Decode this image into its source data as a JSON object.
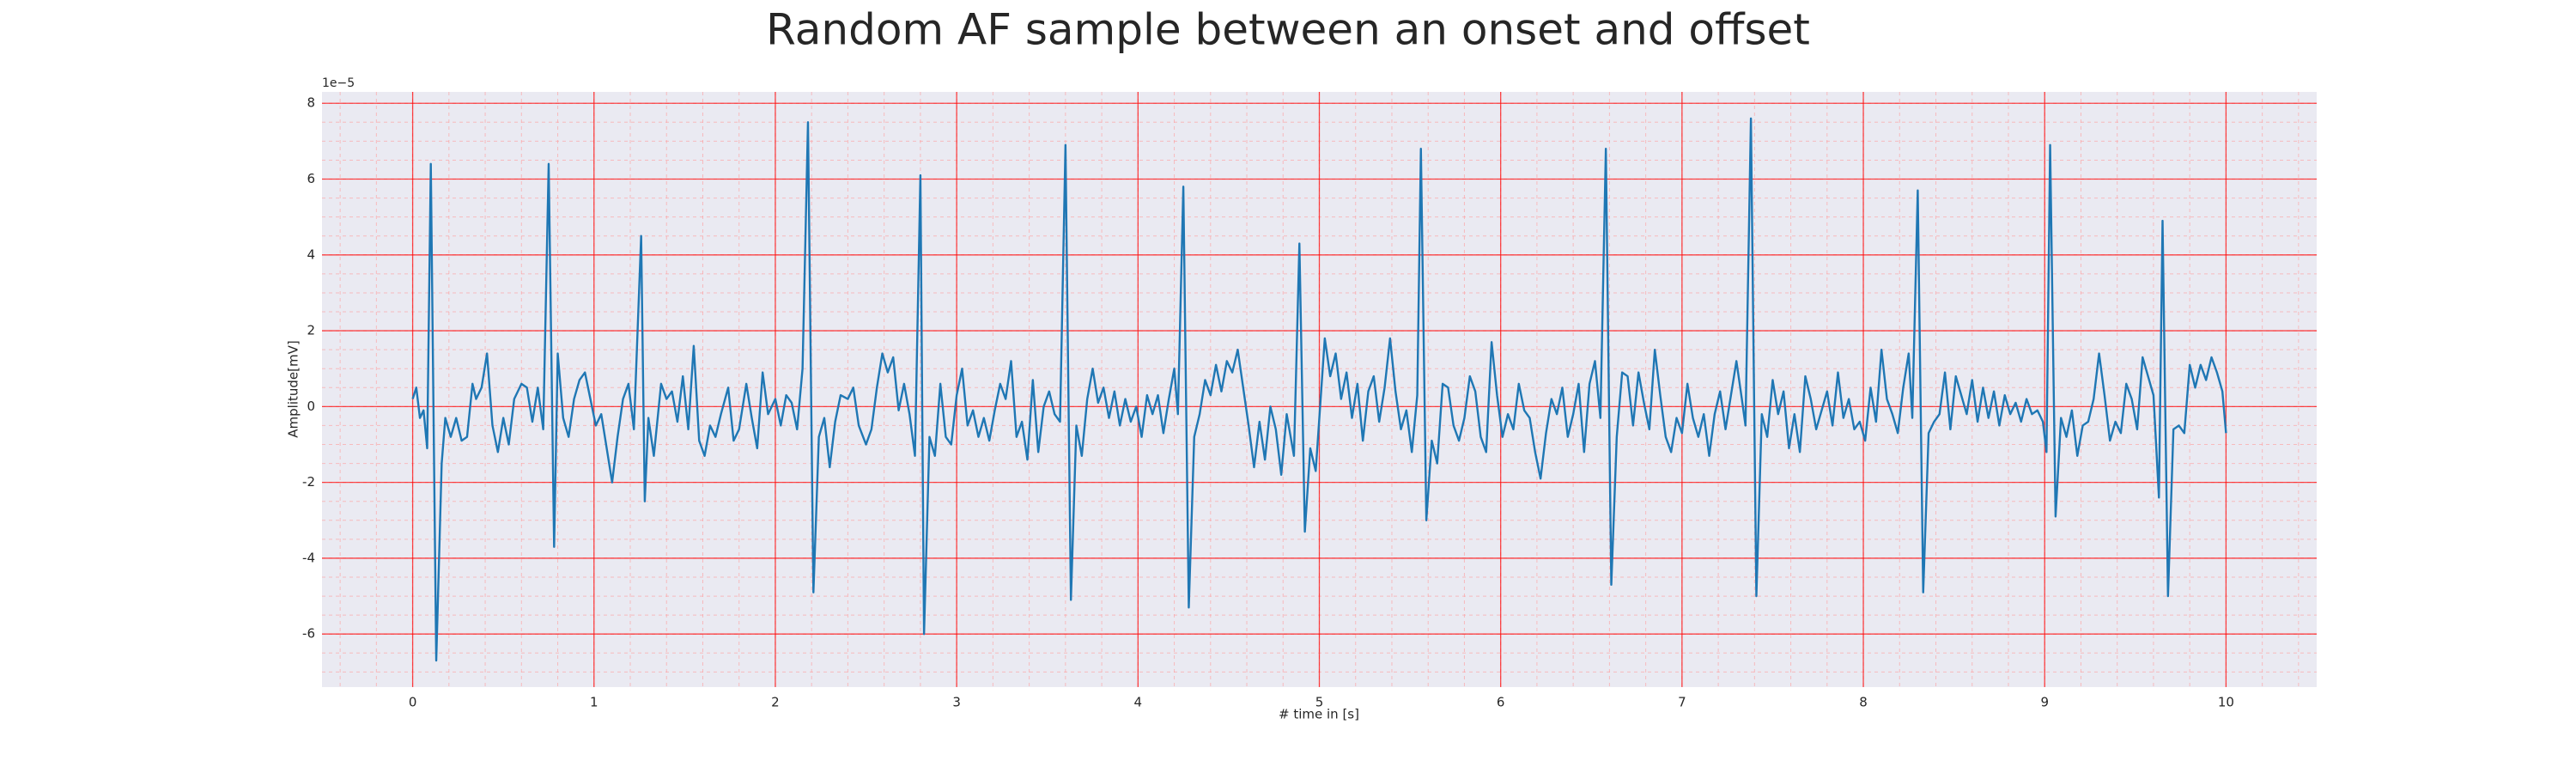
{
  "chart_data": {
    "type": "line",
    "title": "Random AF sample between an onset and offset",
    "xlabel": "# time in [s]",
    "ylabel": "Amplitude[mV]",
    "y_offset_label": "1e−5",
    "xlim": [
      -0.5,
      10.5
    ],
    "ylim": [
      -7.4,
      8.3
    ],
    "xticks": [
      0,
      1,
      2,
      3,
      4,
      5,
      6,
      7,
      8,
      9,
      10
    ],
    "yticks": [
      -6,
      -4,
      -2,
      0,
      2,
      4,
      6,
      8
    ],
    "grid": true,
    "grid_color": "#ff0000",
    "minor_grid": {
      "x": 0.2,
      "y": 0.5,
      "color": "#ff9999"
    },
    "background": "#eaeaf2",
    "x": [
      0,
      0.02,
      0.04,
      0.06,
      0.08,
      0.1,
      0.13,
      0.16,
      0.18,
      0.21,
      0.24,
      0.27,
      0.3,
      0.33,
      0.35,
      0.38,
      0.41,
      0.44,
      0.47,
      0.5,
      0.53,
      0.56,
      0.6,
      0.63,
      0.66,
      0.69,
      0.72,
      0.75,
      0.78,
      0.8,
      0.83,
      0.86,
      0.89,
      0.92,
      0.95,
      0.98,
      1.01,
      1.04,
      1.07,
      1.1,
      1.13,
      1.16,
      1.19,
      1.22,
      1.26,
      1.28,
      1.3,
      1.33,
      1.37,
      1.4,
      1.43,
      1.46,
      1.49,
      1.52,
      1.55,
      1.58,
      1.61,
      1.64,
      1.67,
      1.7,
      1.74,
      1.77,
      1.8,
      1.84,
      1.87,
      1.9,
      1.93,
      1.96,
      2,
      2.03,
      2.06,
      2.09,
      2.12,
      2.15,
      2.18,
      2.21,
      2.24,
      2.27,
      2.3,
      2.33,
      2.36,
      2.4,
      2.43,
      2.46,
      2.5,
      2.53,
      2.56,
      2.59,
      2.62,
      2.65,
      2.68,
      2.71,
      2.74,
      2.77,
      2.8,
      2.82,
      2.85,
      2.88,
      2.91,
      2.94,
      2.97,
      3,
      3.03,
      3.06,
      3.09,
      3.12,
      3.15,
      3.18,
      3.21,
      3.24,
      3.27,
      3.3,
      3.33,
      3.36,
      3.39,
      3.42,
      3.45,
      3.48,
      3.51,
      3.54,
      3.57,
      3.6,
      3.63,
      3.66,
      3.69,
      3.72,
      3.75,
      3.78,
      3.81,
      3.84,
      3.87,
      3.9,
      3.93,
      3.96,
      3.99,
      4.02,
      4.05,
      4.08,
      4.11,
      4.14,
      4.17,
      4.2,
      4.22,
      4.25,
      4.28,
      4.31,
      4.34,
      4.37,
      4.4,
      4.43,
      4.46,
      4.49,
      4.52,
      4.55,
      4.58,
      4.61,
      4.64,
      4.67,
      4.7,
      4.73,
      4.76,
      4.79,
      4.82,
      4.86,
      4.89,
      4.92,
      4.95,
      4.98,
      5,
      5.03,
      5.06,
      5.09,
      5.12,
      5.15,
      5.18,
      5.21,
      5.24,
      5.27,
      5.3,
      5.33,
      5.36,
      5.39,
      5.42,
      5.45,
      5.48,
      5.51,
      5.54,
      5.56,
      5.59,
      5.62,
      5.65,
      5.68,
      5.71,
      5.74,
      5.77,
      5.8,
      5.83,
      5.86,
      5.89,
      5.92,
      5.95,
      5.98,
      6.01,
      6.04,
      6.07,
      6.1,
      6.13,
      6.16,
      6.19,
      6.22,
      6.25,
      6.28,
      6.31,
      6.34,
      6.37,
      6.4,
      6.43,
      6.46,
      6.49,
      6.52,
      6.55,
      6.58,
      6.61,
      6.64,
      6.67,
      6.7,
      6.73,
      6.76,
      6.79,
      6.82,
      6.85,
      6.88,
      6.91,
      6.94,
      6.97,
      7,
      7.03,
      7.06,
      7.09,
      7.12,
      7.15,
      7.18,
      7.21,
      7.24,
      7.27,
      7.3,
      7.33,
      7.35,
      7.38,
      7.41,
      7.44,
      7.47,
      7.5,
      7.53,
      7.56,
      7.59,
      7.62,
      7.65,
      7.68,
      7.71,
      7.74,
      7.77,
      7.8,
      7.83,
      7.86,
      7.89,
      7.92,
      7.95,
      7.98,
      8.01,
      8.04,
      8.07,
      8.1,
      8.13,
      8.16,
      8.19,
      8.22,
      8.25,
      8.27,
      8.3,
      8.33,
      8.36,
      8.39,
      8.42,
      8.45,
      8.48,
      8.51,
      8.54,
      8.57,
      8.6,
      8.63,
      8.66,
      8.69,
      8.72,
      8.75,
      8.78,
      8.81,
      8.84,
      8.87,
      8.9,
      8.93,
      8.96,
      8.99,
      9.01,
      9.03,
      9.06,
      9.09,
      9.12,
      9.15,
      9.18,
      9.21,
      9.24,
      9.27,
      9.3,
      9.33,
      9.36,
      9.39,
      9.42,
      9.45,
      9.48,
      9.51,
      9.54,
      9.57,
      9.6,
      9.63,
      9.65,
      9.68,
      9.71,
      9.74,
      9.77,
      9.8,
      9.83,
      9.86,
      9.89,
      9.92,
      9.95,
      9.98,
      10
    ],
    "series": [
      {
        "color": "#1f77b4",
        "values": [
          0.2,
          0.5,
          -0.3,
          -0.1,
          -1.1,
          6.4,
          -6.7,
          -1.5,
          -0.3,
          -0.8,
          -0.3,
          -0.9,
          -0.8,
          0.6,
          0.2,
          0.5,
          1.4,
          -0.5,
          -1.2,
          -0.3,
          -1.0,
          0.2,
          0.6,
          0.5,
          -0.4,
          0.5,
          -0.6,
          6.4,
          -3.7,
          1.4,
          -0.3,
          -0.8,
          0.2,
          0.7,
          0.9,
          0.2,
          -0.5,
          -0.2,
          -1.1,
          -2.0,
          -0.8,
          0.2,
          0.6,
          -0.6,
          4.5,
          -2.5,
          -0.3,
          -1.3,
          0.6,
          0.2,
          0.4,
          -0.4,
          0.8,
          -0.6,
          1.6,
          -0.9,
          -1.3,
          -0.5,
          -0.8,
          -0.2,
          0.5,
          -0.9,
          -0.6,
          0.6,
          -0.3,
          -1.1,
          0.9,
          -0.2,
          0.2,
          -0.5,
          0.3,
          0.1,
          -0.6,
          1.0,
          7.5,
          -4.9,
          -0.8,
          -0.3,
          -1.6,
          -0.4,
          0.3,
          0.2,
          0.5,
          -0.5,
          -1.0,
          -0.6,
          0.5,
          1.4,
          0.9,
          1.3,
          -0.1,
          0.6,
          -0.2,
          -1.3,
          6.1,
          -6.0,
          -0.8,
          -1.3,
          0.6,
          -0.8,
          -1.0,
          0.3,
          1.0,
          -0.5,
          -0.1,
          -0.8,
          -0.3,
          -0.9,
          -0.1,
          0.6,
          0.2,
          1.2,
          -0.8,
          -0.4,
          -1.4,
          0.7,
          -1.2,
          0.0,
          0.4,
          -0.2,
          -0.4,
          6.9,
          -5.1,
          -0.5,
          -1.3,
          0.2,
          1.0,
          0.1,
          0.5,
          -0.3,
          0.4,
          -0.5,
          0.2,
          -0.4,
          0.0,
          -0.8,
          0.3,
          -0.2,
          0.3,
          -0.7,
          0.2,
          1.0,
          -0.2,
          5.8,
          -5.3,
          -0.8,
          -0.2,
          0.7,
          0.3,
          1.1,
          0.4,
          1.2,
          0.9,
          1.5,
          0.5,
          -0.5,
          -1.6,
          -0.4,
          -1.4,
          0.0,
          -0.6,
          -1.8,
          -0.2,
          -1.3,
          4.3,
          -3.3,
          -1.1,
          -1.7,
          -0.3,
          1.8,
          0.8,
          1.4,
          0.2,
          0.9,
          -0.3,
          0.6,
          -0.9,
          0.4,
          0.8,
          -0.4,
          0.5,
          1.8,
          0.4,
          -0.6,
          -0.1,
          -1.2,
          0.3,
          6.8,
          -3.0,
          -0.9,
          -1.5,
          0.6,
          0.5,
          -0.5,
          -0.9,
          -0.3,
          0.8,
          0.4,
          -0.8,
          -1.2,
          1.7,
          0.3,
          -0.8,
          -0.2,
          -0.6,
          0.6,
          -0.1,
          -0.3,
          -1.2,
          -1.9,
          -0.7,
          0.2,
          -0.2,
          0.5,
          -0.8,
          -0.2,
          0.6,
          -1.2,
          0.6,
          1.2,
          -0.3,
          6.8,
          -4.7,
          -0.8,
          0.9,
          0.8,
          -0.5,
          0.9,
          0.1,
          -0.6,
          1.5,
          0.3,
          -0.8,
          -1.2,
          -0.3,
          -0.7,
          0.6,
          -0.3,
          -0.8,
          -0.2,
          -1.3,
          -0.2,
          0.4,
          -0.6,
          0.3,
          1.2,
          0.2,
          -0.5,
          7.6,
          -5.0,
          -0.2,
          -0.8,
          0.7,
          -0.2,
          0.4,
          -1.1,
          -0.2,
          -1.2,
          0.8,
          0.2,
          -0.6,
          -0.1,
          0.4,
          -0.5,
          0.9,
          -0.3,
          0.2,
          -0.6,
          -0.4,
          -0.9,
          0.5,
          -0.4,
          1.5,
          0.2,
          -0.2,
          -0.7,
          0.5,
          1.4,
          -0.3,
          5.7,
          -4.9,
          -0.7,
          -0.4,
          -0.2,
          0.9,
          -0.6,
          0.8,
          0.3,
          -0.2,
          0.7,
          -0.4,
          0.5,
          -0.3,
          0.4,
          -0.5,
          0.3,
          -0.2,
          0.1,
          -0.4,
          0.2,
          -0.2,
          -0.1,
          -0.4,
          -1.2,
          6.9,
          -2.9,
          -0.3,
          -0.8,
          -0.1,
          -1.3,
          -0.5,
          -0.4,
          0.2,
          1.4,
          0.3,
          -0.9,
          -0.4,
          -0.7,
          0.6,
          0.2,
          -0.6,
          1.3,
          0.8,
          0.3,
          -2.4,
          4.9,
          -5.0,
          -0.6,
          -0.5,
          -0.7,
          1.1,
          0.5,
          1.1,
          0.7,
          1.3,
          0.9,
          0.4,
          -0.7
        ]
      }
    ]
  }
}
